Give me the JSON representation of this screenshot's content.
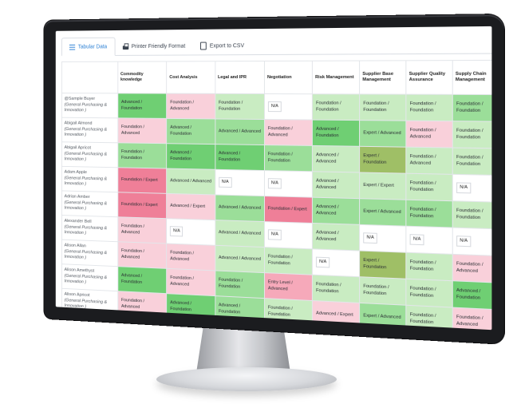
{
  "tabs": {
    "tabular": "Tabular Data",
    "printer": "Printer Friendly Format",
    "export": "Export to CSV"
  },
  "columns": [
    "Commodity knowledge",
    "Cost Analysis",
    "Legal and IPR",
    "Negotiation",
    "Risk Management",
    "Supplier Base Management",
    "Supplier Quality Assurance",
    "Supply Chain Management"
  ],
  "rows": [
    {
      "name": "@Sample Buyer",
      "dept": "(General Purchasing & Innovation )",
      "cells": [
        [
          "Advanced / Foundation",
          "dg"
        ],
        [
          "Foundation / Advanced",
          "lp"
        ],
        [
          "Foundation / Foundation",
          "lg"
        ],
        [
          "N/A",
          "w"
        ],
        [
          "Foundation / Foundation",
          "lg"
        ],
        [
          "Foundation / Foundation",
          "lg"
        ],
        [
          "Foundation / Foundation",
          "lg"
        ],
        [
          "Foundation / Foundation",
          "mg"
        ]
      ]
    },
    {
      "name": "Abigail Almond",
      "dept": "(General Purchasing & Innovation )",
      "cells": [
        [
          "Foundation / Advanced",
          "lp"
        ],
        [
          "Advanced / Foundation",
          "mg"
        ],
        [
          "Advanced / Advanced",
          "mg"
        ],
        [
          "Foundation / Advanced",
          "lp"
        ],
        [
          "Advanced / Foundation",
          "dg"
        ],
        [
          "Expert / Advanced",
          "mg"
        ],
        [
          "Foundation / Advanced",
          "lp"
        ],
        [
          "Foundation / Foundation",
          "lg"
        ]
      ]
    },
    {
      "name": "Abigail Apricot",
      "dept": "(General Purchasing & Innovation )",
      "cells": [
        [
          "Foundation / Foundation",
          "mg"
        ],
        [
          "Advanced / Foundation",
          "dg"
        ],
        [
          "Advanced / Foundation",
          "dg"
        ],
        [
          "Foundation / Foundation",
          "mg"
        ],
        [
          "Advanced / Advanced",
          "lg"
        ],
        [
          "Expert / Foundation",
          "og"
        ],
        [
          "Foundation / Advanced",
          "lg"
        ],
        [
          "Foundation / Foundation",
          "lg"
        ]
      ]
    },
    {
      "name": "Adam Apple",
      "dept": "(General Purchasing & Innovation )",
      "cells": [
        [
          "Foundation / Expert",
          "dp"
        ],
        [
          "Advanced / Advanced",
          "lg"
        ],
        [
          "N/A",
          "w"
        ],
        [
          "N/A",
          "w"
        ],
        [
          "Advanced / Advanced",
          "lg"
        ],
        [
          "Expert / Expert",
          "lg"
        ],
        [
          "Foundation / Foundation",
          "lg"
        ],
        [
          "N/A",
          "w"
        ]
      ]
    },
    {
      "name": "Adrian Amber",
      "dept": "(General Purchasing & Innovation )",
      "cells": [
        [
          "Foundation / Expert",
          "dp"
        ],
        [
          "Advanced / Expert",
          "lp"
        ],
        [
          "Advanced / Advanced",
          "mg"
        ],
        [
          "Foundation / Expert",
          "dp"
        ],
        [
          "Advanced / Advanced",
          "mg"
        ],
        [
          "Expert / Advanced",
          "mg"
        ],
        [
          "Foundation / Foundation",
          "mg"
        ],
        [
          "Foundation / Foundation",
          "lg"
        ]
      ]
    },
    {
      "name": "Alexander Bell",
      "dept": "(General Purchasing & Innovation )",
      "cells": [
        [
          "Foundation / Advanced",
          "lp"
        ],
        [
          "N/A",
          "w"
        ],
        [
          "Advanced / Advanced",
          "lg"
        ],
        [
          "N/A",
          "w"
        ],
        [
          "Advanced / Advanced",
          "lg"
        ],
        [
          "N/A",
          "w"
        ],
        [
          "N/A",
          "w"
        ],
        [
          "N/A",
          "w"
        ]
      ]
    },
    {
      "name": "Alison Allan",
      "dept": "(General Purchasing & Innovation )",
      "cells": [
        [
          "Foundation / Advanced",
          "lp"
        ],
        [
          "Foundation / Advanced",
          "lp"
        ],
        [
          "Advanced / Advanced",
          "lg"
        ],
        [
          "Foundation / Foundation",
          "lg"
        ],
        [
          "N/A",
          "w"
        ],
        [
          "Expert / Foundation",
          "og"
        ],
        [
          "Foundation / Foundation",
          "lg"
        ],
        [
          "Foundation / Advanced",
          "lp"
        ]
      ]
    },
    {
      "name": "Alison Amethyst",
      "dept": "(General Purchasing & Innovation )",
      "cells": [
        [
          "Advanced / Foundation",
          "dg"
        ],
        [
          "Foundation / Advanced",
          "lp"
        ],
        [
          "Foundation / Foundation",
          "mg"
        ],
        [
          "Entry Level / Advanced",
          "mp"
        ],
        [
          "Foundation / Foundation",
          "lg"
        ],
        [
          "Foundation / Foundation",
          "lg"
        ],
        [
          "Foundation / Foundation",
          "lg"
        ],
        [
          "Advanced / Foundation",
          "dg"
        ]
      ]
    },
    {
      "name": "Alison Apricot",
      "dept": "(General Purchasing & Innovation )",
      "cells": [
        [
          "Foundation / Advanced",
          "lp"
        ],
        [
          "Advanced / Foundation",
          "dg"
        ],
        [
          "Advanced / Foundation",
          "mg"
        ],
        [
          "Foundation / Foundation",
          "lg"
        ],
        [
          "Advanced / Expert",
          "lp"
        ],
        [
          "Expert / Advanced",
          "mg"
        ],
        [
          "Foundation / Foundation",
          "lg"
        ],
        [
          "Foundation / Advanced",
          "lp"
        ]
      ]
    }
  ]
}
